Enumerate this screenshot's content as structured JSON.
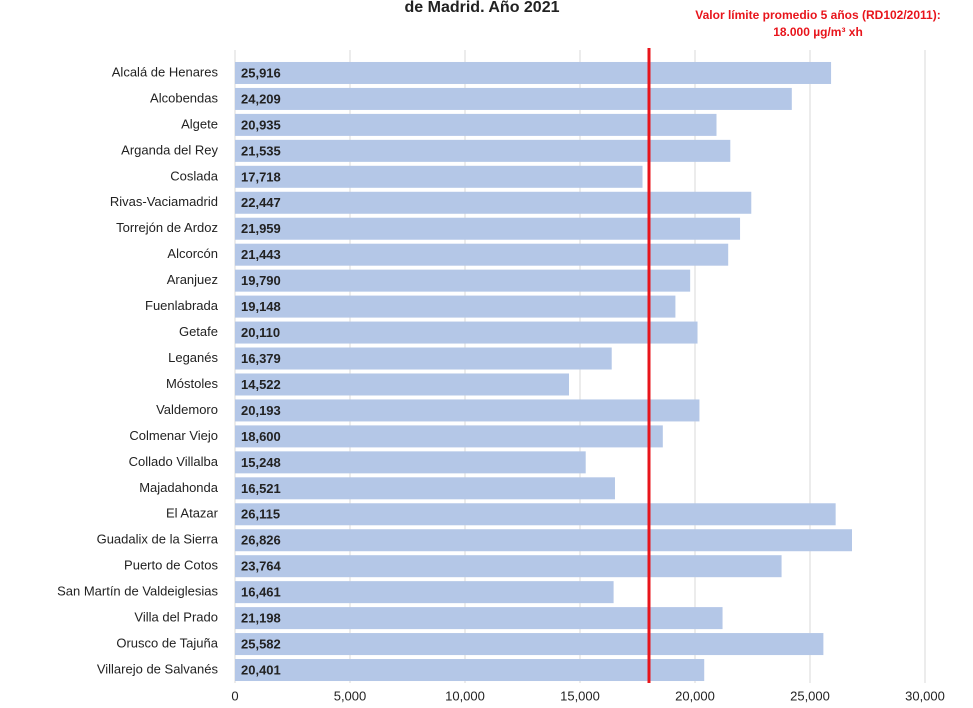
{
  "chart_data": {
    "type": "bar",
    "orientation": "horizontal",
    "title": "de Madrid. Año 2021",
    "annotation": [
      "Valor límite promedio 5 años (RD102/2011):",
      "18.000 µg/m³ xh"
    ],
    "reference_value": 18000,
    "reference_color": "#e8141b",
    "color": "#b4c7e7",
    "grid": true,
    "categories": [
      "Alcalá de Henares",
      "Alcobendas",
      "Algete",
      "Arganda del Rey",
      "Coslada",
      "Rivas-Vaciamadrid",
      "Torrejón de Ardoz",
      "Alcorcón",
      "Aranjuez",
      "Fuenlabrada",
      "Getafe",
      "Leganés",
      "Móstoles",
      "Valdemoro",
      "Colmenar Viejo",
      "Collado Villalba",
      "Majadahonda",
      "El Atazar",
      "Guadalix de la Sierra",
      "Puerto de Cotos",
      "San Martín de Valdeiglesias",
      "Villa del Prado",
      "Orusco de Tajuña",
      "Villarejo de Salvanés"
    ],
    "values": [
      25916,
      24209,
      20935,
      21535,
      17718,
      22447,
      21959,
      21443,
      19790,
      19148,
      20110,
      16379,
      14522,
      20193,
      18600,
      15248,
      16521,
      26115,
      26826,
      23764,
      16461,
      21198,
      25582,
      20401
    ],
    "value_labels": [
      "25,916",
      "24,209",
      "20,935",
      "21,535",
      "17,718",
      "22,447",
      "21,959",
      "21,443",
      "19,790",
      "19,148",
      "20,110",
      "16,379",
      "14,522",
      "20,193",
      "18,600",
      "15,248",
      "16,521",
      "26,115",
      "26,826",
      "23,764",
      "16,461",
      "21,198",
      "25,582",
      "20,401"
    ],
    "xlim": [
      0,
      30000
    ],
    "xticks": [
      0,
      {
        "value": 5000,
        "label": "5,000"
      },
      {
        "value": 10000,
        "label": "10,000"
      },
      {
        "value": 15000,
        "label": "15,000"
      },
      {
        "value": 20000,
        "label": "20,000"
      },
      {
        "value": 25000,
        "label": "25,000"
      },
      {
        "value": 30000,
        "label": "30,000"
      }
    ]
  }
}
